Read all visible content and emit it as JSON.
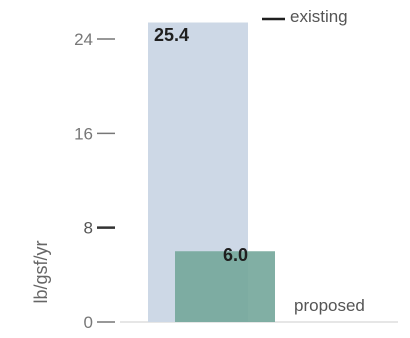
{
  "chart_data": {
    "type": "bar",
    "ylabel": "lb/gsf/yr",
    "ylim": [
      0,
      24
    ],
    "yticks": [
      {
        "value": 0,
        "label": "0"
      },
      {
        "value": 8,
        "label": "8"
      },
      {
        "value": 16,
        "label": "16"
      },
      {
        "value": 24,
        "label": "24"
      }
    ],
    "series": [
      {
        "name": "existing",
        "value": 25.4,
        "value_label": "25.4",
        "color": "#cdd8e6"
      },
      {
        "name": "proposed",
        "value": 6.0,
        "value_label": "6.0",
        "color": "#76a89c"
      }
    ],
    "baseline_color": "#cccccc"
  }
}
